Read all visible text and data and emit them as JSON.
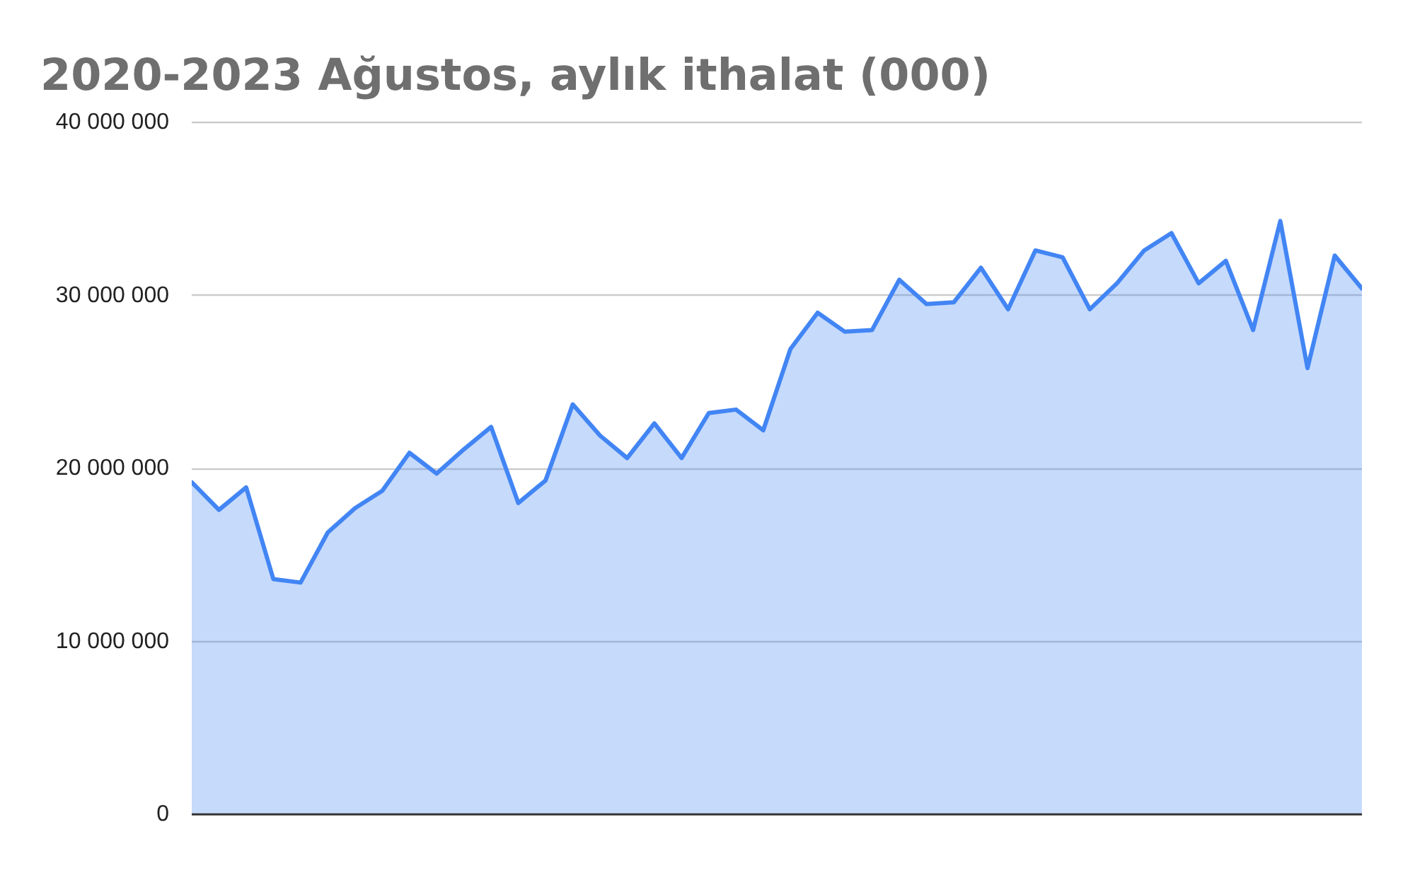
{
  "chart_data": {
    "type": "area",
    "title": "2020-2023 Ağustos, aylık ithalat (000)",
    "categories": [
      null,
      null,
      null,
      null,
      null,
      null,
      null,
      null,
      null,
      null,
      null,
      null,
      null,
      null,
      null,
      null,
      null,
      null,
      null,
      null,
      null,
      null,
      null,
      null,
      null,
      null,
      null,
      null,
      null,
      null,
      null,
      null,
      null,
      null,
      null,
      null,
      null,
      null,
      null,
      null,
      null,
      null,
      null,
      null
    ],
    "values": [
      19200000,
      17600000,
      18900000,
      13600000,
      13400000,
      16300000,
      17700000,
      18700000,
      20900000,
      19700000,
      21100000,
      22400000,
      18000000,
      19300000,
      23700000,
      21900000,
      20600000,
      22600000,
      20600000,
      23200000,
      23400000,
      22200000,
      26900000,
      29000000,
      27900000,
      28000000,
      30900000,
      29500000,
      29600000,
      31600000,
      29200000,
      32600000,
      32200000,
      29200000,
      30700000,
      32600000,
      33600000,
      30700000,
      32000000,
      28000000,
      34300000,
      25800000,
      32300000,
      30400000
    ],
    "color": "#4285f4",
    "ylim": [
      0,
      40000000
    ],
    "yticks": [
      {
        "value": 0,
        "label": "0"
      },
      {
        "value": 10000000,
        "label": "10 000 000"
      },
      {
        "value": 20000000,
        "label": "20 000 000"
      },
      {
        "value": 30000000,
        "label": "30 000 000"
      },
      {
        "value": 40000000,
        "label": "40 000 000"
      }
    ],
    "grid": "y",
    "tick_labels": "y"
  }
}
